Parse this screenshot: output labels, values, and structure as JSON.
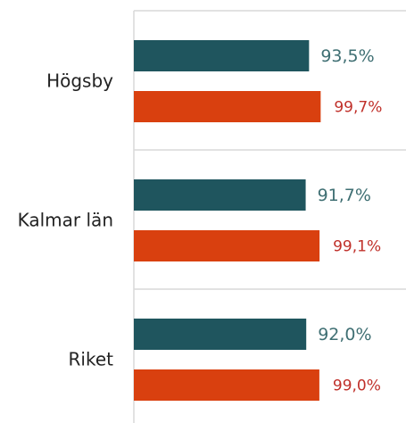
{
  "chart_data": {
    "type": "bar",
    "orientation": "horizontal",
    "categories": [
      "Högsby",
      "Kalmar län",
      "Riket"
    ],
    "series": [
      {
        "color": "#1f555e",
        "label_color": "#3f6f73",
        "values": [
          93.5,
          91.7,
          92.0
        ],
        "value_labels": [
          "93,5%",
          "91,7%",
          "92,0%"
        ]
      },
      {
        "color": "#d9400f",
        "label_color": "#c0302a",
        "values": [
          99.7,
          99.1,
          99.0
        ],
        "value_labels": [
          "99,7%",
          "99,1%",
          "99,0%"
        ]
      }
    ],
    "xlim": [
      0,
      140
    ]
  }
}
